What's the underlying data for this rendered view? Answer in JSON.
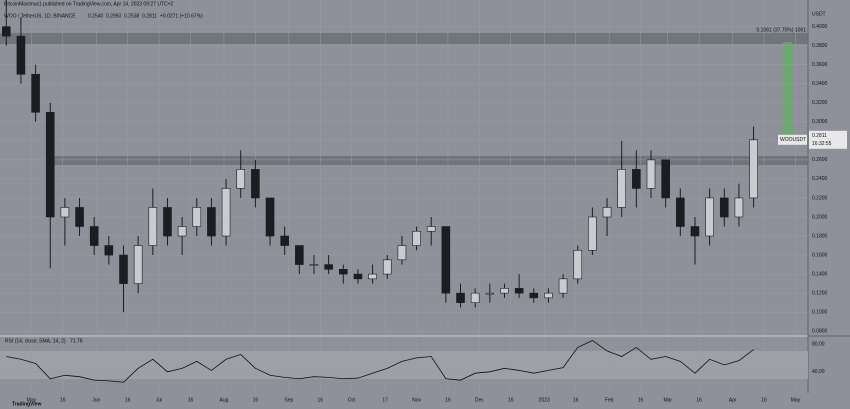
{
  "header": {
    "author_line": "BitcoinMaximus1 published on TradingView.com, Apr 14, 2023 09:27 UTC+2",
    "footer": "TradingView"
  },
  "chart_data": [
    {
      "type": "candlestick",
      "title": "WOO / TetherUS, 1D, BINANCE",
      "ohlc_legend": [
        "0.2540",
        "0.2950",
        "0.2538",
        "0.2811",
        "+0.0271 (+10.67%)"
      ],
      "unit": "USDT",
      "measure_label": "0.1061 (37.70%) 1061",
      "price_label": {
        "symbol": "WOOUSDT",
        "price": "0.2811",
        "countdown": "16:32:55"
      },
      "color": "#1c1d21",
      "x": [
        -12,
        -5,
        2,
        9,
        16,
        23,
        30,
        37,
        44,
        51,
        58,
        65,
        72,
        79,
        86,
        93,
        100,
        107,
        114,
        121,
        128,
        135,
        142,
        149,
        156,
        163,
        170,
        177,
        184,
        191,
        198,
        205,
        212,
        219,
        226,
        233,
        240,
        247,
        254,
        261,
        268,
        275,
        282,
        289,
        296,
        303,
        310,
        317,
        324,
        331,
        338,
        345
      ],
      "open": [
        0.4,
        0.39,
        0.35,
        0.31,
        0.2,
        0.21,
        0.19,
        0.17,
        0.16,
        0.13,
        0.17,
        0.21,
        0.18,
        0.19,
        0.21,
        0.18,
        0.23,
        0.25,
        0.22,
        0.18,
        0.17,
        0.15,
        0.15,
        0.145,
        0.14,
        0.135,
        0.14,
        0.155,
        0.17,
        0.185,
        0.19,
        0.12,
        0.11,
        0.12,
        0.12,
        0.125,
        0.12,
        0.115,
        0.12,
        0.135,
        0.165,
        0.2,
        0.21,
        0.25,
        0.23,
        0.26,
        0.22,
        0.19,
        0.18,
        0.22,
        0.2,
        0.22
      ],
      "high": [
        0.43,
        0.41,
        0.36,
        0.32,
        0.22,
        0.22,
        0.2,
        0.18,
        0.17,
        0.18,
        0.23,
        0.22,
        0.2,
        0.22,
        0.22,
        0.24,
        0.27,
        0.26,
        0.22,
        0.19,
        0.17,
        0.16,
        0.16,
        0.15,
        0.145,
        0.15,
        0.16,
        0.18,
        0.19,
        0.2,
        0.19,
        0.13,
        0.125,
        0.13,
        0.13,
        0.14,
        0.125,
        0.125,
        0.14,
        0.17,
        0.21,
        0.22,
        0.28,
        0.27,
        0.27,
        0.26,
        0.23,
        0.2,
        0.23,
        0.23,
        0.235,
        0.295
      ],
      "low": [
        0.38,
        0.34,
        0.3,
        0.146,
        0.17,
        0.18,
        0.16,
        0.15,
        0.1,
        0.12,
        0.16,
        0.17,
        0.16,
        0.18,
        0.17,
        0.17,
        0.22,
        0.21,
        0.17,
        0.16,
        0.14,
        0.14,
        0.14,
        0.13,
        0.13,
        0.13,
        0.135,
        0.15,
        0.165,
        0.17,
        0.11,
        0.105,
        0.105,
        0.11,
        0.115,
        0.115,
        0.11,
        0.11,
        0.115,
        0.13,
        0.16,
        0.18,
        0.2,
        0.21,
        0.22,
        0.21,
        0.18,
        0.15,
        0.17,
        0.19,
        0.19,
        0.21
      ],
      "close": [
        0.39,
        0.35,
        0.31,
        0.2,
        0.21,
        0.19,
        0.17,
        0.16,
        0.13,
        0.17,
        0.21,
        0.18,
        0.19,
        0.21,
        0.18,
        0.23,
        0.25,
        0.22,
        0.18,
        0.17,
        0.15,
        0.15,
        0.145,
        0.14,
        0.135,
        0.14,
        0.155,
        0.17,
        0.185,
        0.19,
        0.12,
        0.11,
        0.12,
        0.12,
        0.125,
        0.12,
        0.115,
        0.12,
        0.135,
        0.165,
        0.2,
        0.21,
        0.25,
        0.23,
        0.26,
        0.22,
        0.19,
        0.18,
        0.22,
        0.2,
        0.22,
        0.2811
      ],
      "xlim": [
        -15,
        371
      ],
      "xticks": [
        {
          "value": 0,
          "label": "May"
        },
        {
          "value": 15,
          "label": "16"
        },
        {
          "value": 31,
          "label": "Jun"
        },
        {
          "value": 46,
          "label": "16"
        },
        {
          "value": 61,
          "label": "Jul"
        },
        {
          "value": 76,
          "label": "16"
        },
        {
          "value": 92,
          "label": "Aug"
        },
        {
          "value": 107,
          "label": "16"
        },
        {
          "value": 123,
          "label": "Sep"
        },
        {
          "value": 138,
          "label": "16"
        },
        {
          "value": 153,
          "label": "Oct"
        },
        {
          "value": 169,
          "label": "17"
        },
        {
          "value": 184,
          "label": "Nov"
        },
        {
          "value": 199,
          "label": "16"
        },
        {
          "value": 214,
          "label": "Dec"
        },
        {
          "value": 229,
          "label": "16"
        },
        {
          "value": 245,
          "label": "2023"
        },
        {
          "value": 260,
          "label": "16"
        },
        {
          "value": 276,
          "label": "Feb"
        },
        {
          "value": 291,
          "label": "16"
        },
        {
          "value": 304,
          "label": "Mar"
        },
        {
          "value": 319,
          "label": "16"
        },
        {
          "value": 335,
          "label": "Apr"
        },
        {
          "value": 350,
          "label": "16"
        },
        {
          "value": 365,
          "label": "May"
        }
      ],
      "ylim": [
        0.076,
        0.428
      ],
      "yticks": [
        {
          "value": 0.4,
          "label": "0.4000"
        },
        {
          "value": 0.38,
          "label": "0.3800"
        },
        {
          "value": 0.36,
          "label": "0.3600"
        },
        {
          "value": 0.34,
          "label": "0.3400"
        },
        {
          "value": 0.32,
          "label": "0.3200"
        },
        {
          "value": 0.3,
          "label": "0.3000"
        },
        {
          "value": 0.28,
          "label": "0.2800"
        },
        {
          "value": 0.26,
          "label": "0.2600"
        },
        {
          "value": 0.24,
          "label": "0.2400"
        },
        {
          "value": 0.22,
          "label": "0.2200"
        },
        {
          "value": 0.2,
          "label": "0.2000"
        },
        {
          "value": 0.18,
          "label": "0.1800"
        },
        {
          "value": 0.16,
          "label": "0.1600"
        },
        {
          "value": 0.14,
          "label": "0.1400"
        },
        {
          "value": 0.12,
          "label": "0.1200"
        },
        {
          "value": 0.1,
          "label": "0.1000"
        },
        {
          "value": 0.08,
          "label": "0.0800"
        }
      ]
    },
    {
      "type": "line",
      "title": "RSI (14, close, SMA, 14, 2)",
      "value_text": "71.78",
      "color": "#111111",
      "x": [
        -12,
        -5,
        2,
        9,
        16,
        23,
        30,
        37,
        44,
        51,
        58,
        65,
        72,
        79,
        86,
        93,
        100,
        107,
        114,
        121,
        128,
        135,
        142,
        149,
        156,
        163,
        170,
        177,
        184,
        191,
        198,
        205,
        212,
        219,
        226,
        233,
        240,
        247,
        254,
        261,
        268,
        275,
        282,
        289,
        296,
        303,
        310,
        317,
        324,
        331,
        338,
        345
      ],
      "values": [
        62,
        58,
        52,
        30,
        35,
        33,
        28,
        27,
        25,
        45,
        58,
        40,
        45,
        55,
        42,
        58,
        65,
        45,
        35,
        32,
        30,
        33,
        32,
        30,
        31,
        38,
        45,
        55,
        60,
        62,
        30,
        28,
        38,
        40,
        45,
        42,
        38,
        42,
        46,
        75,
        85,
        70,
        62,
        75,
        58,
        62,
        55,
        38,
        58,
        50,
        56,
        72
      ],
      "xlim": [
        -15,
        371
      ],
      "ylim": [
        11,
        90
      ],
      "yticks": [
        {
          "value": 80,
          "label": "80.00"
        },
        {
          "value": 40,
          "label": "40.00"
        }
      ]
    }
  ]
}
